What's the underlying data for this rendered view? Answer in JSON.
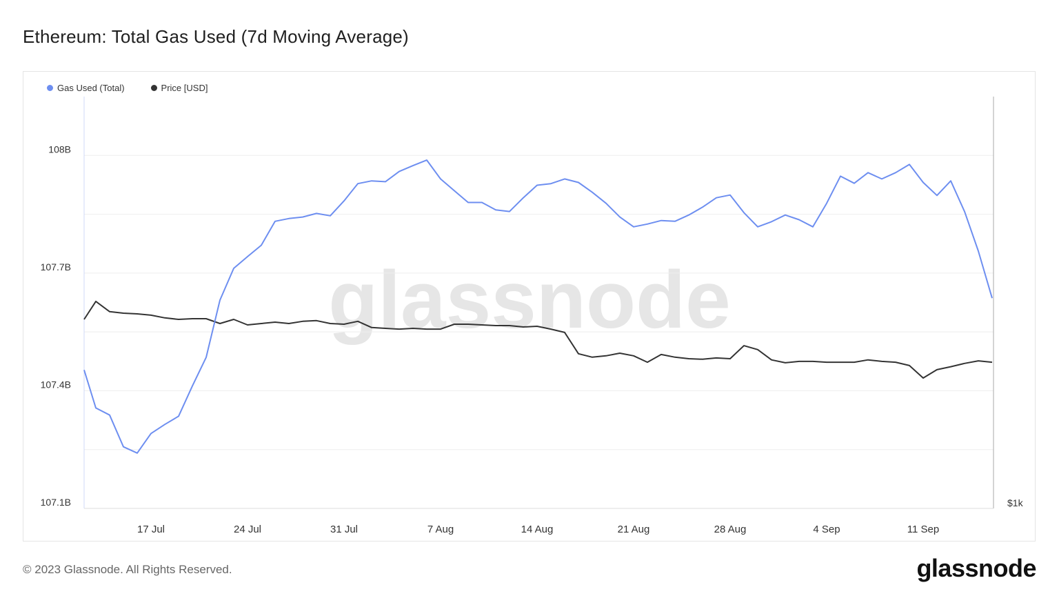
{
  "title": "Ethereum: Total Gas Used (7d Moving Average)",
  "footer": "© 2023 Glassnode. All Rights Reserved.",
  "logo": "glassnode",
  "watermark": "glassnode",
  "colors": {
    "gas": "#6d8ef0",
    "price": "#333333",
    "grid": "#eeeeee"
  },
  "chart_data": {
    "type": "line",
    "title": "Ethereum: Total Gas Used (7d Moving Average)",
    "x_start": "2023-07-12",
    "x_step_days": 1,
    "xtick_labels": [
      "17 Jul",
      "24 Jul",
      "31 Jul",
      "7 Aug",
      "14 Aug",
      "21 Aug",
      "28 Aug",
      "4 Sep",
      "11 Sep"
    ],
    "xtick_day_offsets": [
      5,
      12,
      19,
      26,
      33,
      40,
      47,
      54,
      61
    ],
    "y_left": {
      "ticks": [
        107.1,
        107.4,
        107.7,
        108.0
      ],
      "tick_labels": [
        "107.1B",
        "107.4B",
        "107.7B",
        "108B"
      ],
      "range": [
        107.1,
        108.15
      ],
      "unit": "B"
    },
    "y_right": {
      "tick_labels": [
        "$1k"
      ],
      "scale": "log",
      "range": [
        1000,
        3745
      ]
    },
    "legend_position": "top-left",
    "grid": true,
    "series": [
      {
        "name": "Gas Used (Total)",
        "axis": "left",
        "values": [
          107.453,
          107.356,
          107.338,
          107.257,
          107.241,
          107.291,
          107.314,
          107.335,
          107.412,
          107.485,
          107.631,
          107.712,
          107.742,
          107.771,
          107.832,
          107.839,
          107.843,
          107.852,
          107.846,
          107.884,
          107.928,
          107.935,
          107.933,
          107.959,
          107.974,
          107.988,
          107.94,
          107.91,
          107.88,
          107.88,
          107.861,
          107.857,
          107.892,
          107.924,
          107.928,
          107.94,
          107.931,
          107.906,
          107.878,
          107.843,
          107.818,
          107.825,
          107.834,
          107.832,
          107.848,
          107.868,
          107.892,
          107.899,
          107.854,
          107.818,
          107.831,
          107.848,
          107.836,
          107.818,
          107.878,
          107.947,
          107.929,
          107.956,
          107.94,
          107.956,
          107.977,
          107.931,
          107.898,
          107.935,
          107.857,
          107.756,
          107.636
        ]
      },
      {
        "name": "Price [USD]",
        "axis": "right",
        "values": [
          1833,
          1942,
          1879,
          1870,
          1866,
          1858,
          1842,
          1833,
          1837,
          1837,
          1809,
          1833,
          1801,
          1809,
          1817,
          1809,
          1822,
          1826,
          1809,
          1805,
          1822,
          1786,
          1781,
          1777,
          1781,
          1777,
          1777,
          1805,
          1805,
          1801,
          1797,
          1797,
          1789,
          1793,
          1777,
          1758,
          1642,
          1624,
          1631,
          1645,
          1631,
          1598,
          1638,
          1624,
          1616,
          1613,
          1620,
          1616,
          1685,
          1664,
          1610,
          1595,
          1602,
          1602,
          1598,
          1598,
          1598,
          1610,
          1602,
          1598,
          1581,
          1519,
          1560,
          1575,
          1592,
          1605,
          1598
        ]
      }
    ]
  }
}
